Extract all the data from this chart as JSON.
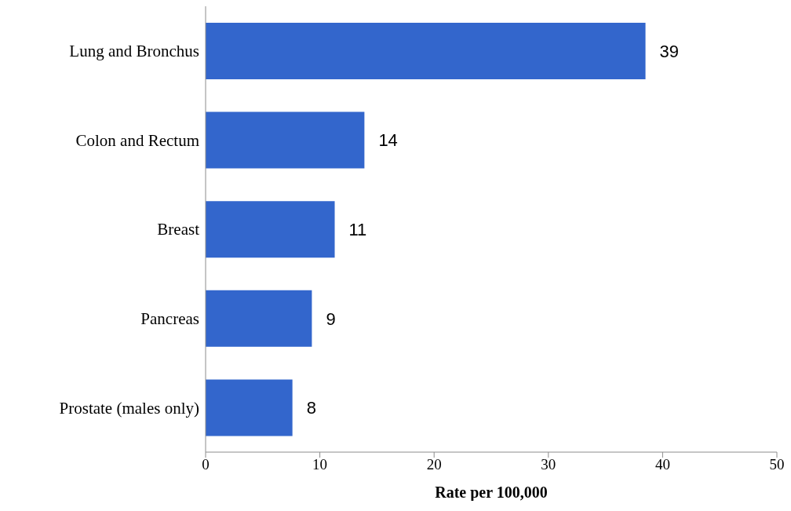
{
  "chart_data": {
    "type": "bar",
    "orientation": "horizontal",
    "xlabel": "Rate per 100,000",
    "categories": [
      "Lung and Bronchus",
      "Colon and Rectum",
      "Breast",
      "Pancreas",
      "Prostate (males only)"
    ],
    "values": [
      38.5,
      13.9,
      11.3,
      9.3,
      7.6
    ],
    "value_labels": [
      "39",
      "14",
      "11",
      "9",
      "8"
    ],
    "color": "#3366cc",
    "xlim": [
      0,
      50
    ],
    "xticks": [
      0,
      10,
      20,
      30,
      40,
      50
    ],
    "grid": false,
    "legend": false
  }
}
